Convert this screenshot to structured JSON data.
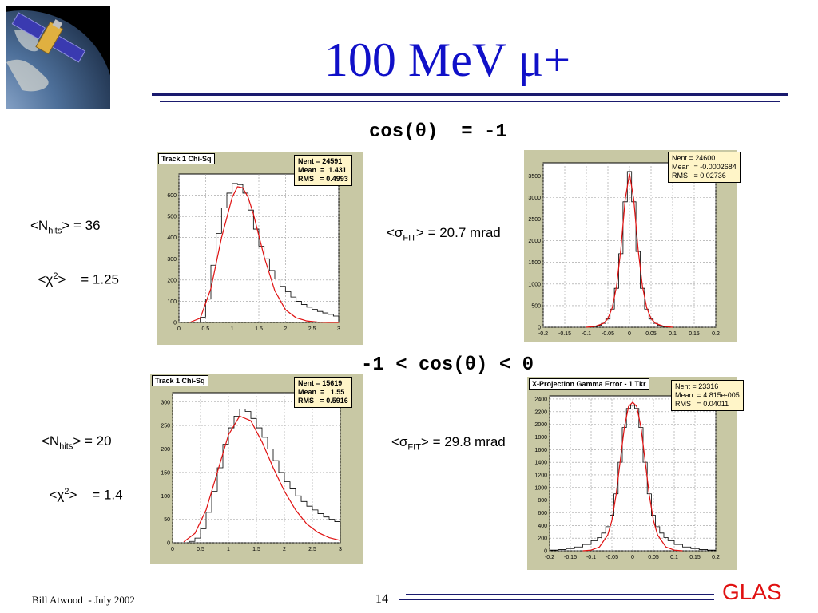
{
  "slide": {
    "title": "100 MeV μ+",
    "page_number": "14",
    "footer_author": "Bill Atwood  - July 2002",
    "footer_logo": "GLAS",
    "logo_image": "satellite-over-earth-image",
    "title_color": "#1010c8",
    "logo_color": "#e01010"
  },
  "sections": [
    {
      "heading": "cos(θ)  = -1",
      "nhits_label": "<N",
      "nhits_sub": "hits",
      "nhits_value": "> = 36",
      "chi_label": "<χ",
      "chi_sup": "2",
      "chi_value": ">    = 1.25",
      "sigma_label": "<σ",
      "sigma_sub": "FIT",
      "sigma_value": "> = 20.7 mrad"
    },
    {
      "heading": "-1 < cos(θ) < 0",
      "nhits_label": "<N",
      "nhits_sub": "hits",
      "nhits_value": "> = 20",
      "chi_label": "<χ",
      "chi_sup": "2",
      "chi_value": ">    = 1.4",
      "sigma_label": "<σ",
      "sigma_sub": "FIT",
      "sigma_value": "> = 29.8 mrad"
    }
  ],
  "chart_data": [
    {
      "type": "line",
      "title": "Track 1 Chi-Sq",
      "stats": [
        "Nent = 24591",
        "Mean  =  1.431",
        "RMS   = 0.4993"
      ],
      "xlim": [
        0,
        3
      ],
      "ylim": [
        0,
        700
      ],
      "xticks": [
        "0",
        "0.5",
        "1",
        "1.5",
        "2",
        "2.5",
        "3"
      ],
      "yticks": [
        "0",
        "100",
        "200",
        "300",
        "400",
        "500",
        "600"
      ],
      "xtick_values": [
        0,
        0.5,
        1,
        1.5,
        2,
        2.5,
        3
      ],
      "ytick_values": [
        0,
        100,
        200,
        300,
        400,
        500,
        600
      ],
      "grid": true,
      "series": [
        {
          "kind": "histogram",
          "x": [
            0.35,
            0.45,
            0.55,
            0.65,
            0.75,
            0.85,
            0.95,
            1.05,
            1.15,
            1.25,
            1.35,
            1.45,
            1.55,
            1.65,
            1.75,
            1.85,
            1.95,
            2.05,
            2.15,
            2.25,
            2.35,
            2.45,
            2.55,
            2.65,
            2.75,
            2.85,
            2.95
          ],
          "y": [
            2,
            25,
            110,
            270,
            420,
            540,
            610,
            655,
            650,
            610,
            530,
            440,
            360,
            300,
            245,
            205,
            170,
            145,
            120,
            100,
            85,
            72,
            62,
            52,
            45,
            38,
            30
          ]
        },
        {
          "kind": "fit",
          "x": [
            0.2,
            0.4,
            0.6,
            0.8,
            1.0,
            1.1,
            1.2,
            1.3,
            1.4,
            1.5,
            1.6,
            1.8,
            2.0,
            2.2,
            2.4,
            2.6,
            2.8,
            3.0
          ],
          "y": [
            0,
            20,
            160,
            400,
            590,
            640,
            635,
            590,
            510,
            410,
            310,
            150,
            60,
            22,
            7,
            2,
            0,
            0
          ]
        }
      ]
    },
    {
      "type": "line",
      "title": "",
      "stats": [
        "Nent = 24600",
        "Mean  = -0.0002684",
        "RMS   = 0.02736"
      ],
      "xlim": [
        -0.2,
        0.2
      ],
      "ylim": [
        0,
        3800
      ],
      "xticks": [
        "-0.2",
        "-0.15",
        "-0.1",
        "-0.05",
        "0",
        "0.05",
        "0.1",
        "0.15",
        "0.2"
      ],
      "yticks": [
        "0",
        "500",
        "1000",
        "1500",
        "2000",
        "2500",
        "3000",
        "3500"
      ],
      "xtick_values": [
        -0.2,
        -0.15,
        -0.1,
        -0.05,
        0,
        0.05,
        0.1,
        0.15,
        0.2
      ],
      "ytick_values": [
        0,
        500,
        1000,
        1500,
        2000,
        2500,
        3000,
        3500
      ],
      "grid": true,
      "series": [
        {
          "kind": "histogram",
          "x": [
            -0.09,
            -0.08,
            -0.07,
            -0.06,
            -0.05,
            -0.04,
            -0.03,
            -0.02,
            -0.01,
            0,
            0.01,
            0.02,
            0.03,
            0.04,
            0.05,
            0.06,
            0.07,
            0.08,
            0.09
          ],
          "y": [
            5,
            20,
            40,
            90,
            190,
            420,
            900,
            1700,
            2900,
            3600,
            2900,
            1750,
            900,
            420,
            190,
            90,
            40,
            20,
            5
          ]
        },
        {
          "kind": "fit",
          "x": [
            -0.1,
            -0.08,
            -0.06,
            -0.05,
            -0.04,
            -0.03,
            -0.02,
            -0.01,
            0,
            0.01,
            0.02,
            0.03,
            0.04,
            0.05,
            0.06,
            0.08,
            0.1
          ],
          "y": [
            0,
            20,
            90,
            200,
            450,
            950,
            1800,
            2950,
            3550,
            2950,
            1800,
            950,
            450,
            200,
            90,
            20,
            0
          ]
        }
      ]
    },
    {
      "type": "line",
      "title": "Track 1 Chi-Sq",
      "stats": [
        "Nent = 15619",
        "Mean  =   1.55",
        "RMS   = 0.5916"
      ],
      "xlim": [
        0,
        3
      ],
      "ylim": [
        0,
        320
      ],
      "xticks": [
        "0",
        "0.5",
        "1",
        "1.5",
        "2",
        "2.5",
        "3"
      ],
      "yticks": [
        "0",
        "50",
        "100",
        "150",
        "200",
        "250",
        "300"
      ],
      "xtick_values": [
        0,
        0.5,
        1,
        1.5,
        2,
        2.5,
        3
      ],
      "ytick_values": [
        0,
        50,
        100,
        150,
        200,
        250,
        300
      ],
      "grid": true,
      "series": [
        {
          "kind": "histogram",
          "x": [
            0.35,
            0.45,
            0.55,
            0.65,
            0.75,
            0.85,
            0.95,
            1.05,
            1.15,
            1.25,
            1.35,
            1.45,
            1.55,
            1.65,
            1.75,
            1.85,
            1.95,
            2.05,
            2.15,
            2.25,
            2.35,
            2.45,
            2.55,
            2.65,
            2.75,
            2.85,
            2.95
          ],
          "y": [
            3,
            10,
            30,
            65,
            110,
            160,
            210,
            245,
            270,
            285,
            280,
            265,
            245,
            225,
            200,
            175,
            150,
            130,
            115,
            100,
            88,
            78,
            70,
            62,
            55,
            50,
            45
          ]
        },
        {
          "kind": "fit",
          "x": [
            0.2,
            0.4,
            0.6,
            0.8,
            1.0,
            1.2,
            1.4,
            1.6,
            1.8,
            2.0,
            2.2,
            2.4,
            2.6,
            2.8,
            3.0
          ],
          "y": [
            2,
            20,
            70,
            150,
            230,
            270,
            260,
            215,
            160,
            110,
            70,
            40,
            22,
            11,
            5
          ]
        }
      ]
    },
    {
      "type": "line",
      "title": "X-Projection Gamma Error - 1 Tkr",
      "stats": [
        "Nent = 23316",
        "Mean  = 4.815e-005",
        "RMS   = 0.04011"
      ],
      "xlim": [
        -0.2,
        0.2
      ],
      "ylim": [
        0,
        2450
      ],
      "xticks": [
        "-0.2",
        "-0.15",
        "-0.1",
        "-0.05",
        "0",
        "0.05",
        "0.1",
        "0.15",
        "0.2"
      ],
      "yticks": [
        "0",
        "200",
        "400",
        "600",
        "800",
        "1000",
        "1200",
        "1400",
        "1600",
        "1800",
        "2000",
        "2200",
        "2400"
      ],
      "xtick_values": [
        -0.2,
        -0.15,
        -0.1,
        -0.05,
        0,
        0.05,
        0.1,
        0.15,
        0.2
      ],
      "ytick_values": [
        0,
        200,
        400,
        600,
        800,
        1000,
        1200,
        1400,
        1600,
        1800,
        2000,
        2200,
        2400
      ],
      "grid": true,
      "series": [
        {
          "kind": "histogram",
          "x": [
            -0.19,
            -0.17,
            -0.15,
            -0.13,
            -0.11,
            -0.09,
            -0.08,
            -0.07,
            -0.06,
            -0.05,
            -0.04,
            -0.03,
            -0.02,
            -0.01,
            0,
            0.01,
            0.02,
            0.03,
            0.04,
            0.05,
            0.06,
            0.07,
            0.08,
            0.09,
            0.11,
            0.13,
            0.15,
            0.17,
            0.19
          ],
          "y": [
            10,
            20,
            35,
            60,
            100,
            160,
            210,
            280,
            380,
            560,
            900,
            1400,
            1950,
            2250,
            2300,
            2250,
            1950,
            1400,
            900,
            560,
            380,
            280,
            210,
            160,
            100,
            60,
            35,
            20,
            10
          ]
        },
        {
          "kind": "fit",
          "x": [
            -0.12,
            -0.1,
            -0.08,
            -0.06,
            -0.05,
            -0.04,
            -0.03,
            -0.02,
            -0.01,
            0,
            0.01,
            0.02,
            0.03,
            0.04,
            0.05,
            0.06,
            0.08,
            0.1,
            0.12
          ],
          "y": [
            0,
            10,
            60,
            250,
            480,
            880,
            1420,
            1950,
            2280,
            2350,
            2280,
            1950,
            1420,
            880,
            480,
            250,
            60,
            10,
            0
          ]
        }
      ]
    }
  ]
}
